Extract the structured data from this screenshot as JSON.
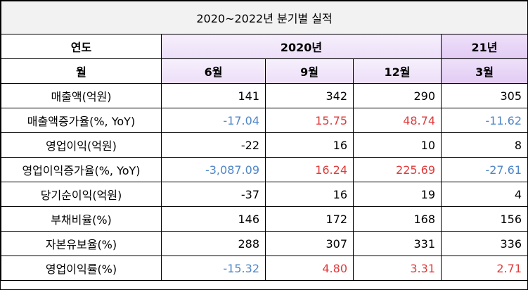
{
  "header": {
    "title": "2020~2022년 분기별 실적"
  },
  "table": {
    "year_row": [
      "연도",
      "2020년",
      "21년"
    ],
    "month_row": [
      "월",
      "6월",
      "9월",
      "12월",
      "3월"
    ],
    "rows": [
      [
        "매출액(억원)",
        "141",
        "342",
        "290",
        "305"
      ],
      [
        "매출액증가율(%, YoY)",
        "-17.04",
        "15.75",
        "48.74",
        "-11.62"
      ],
      [
        "영업이익(억원)",
        "-22",
        "16",
        "10",
        "8"
      ],
      [
        "영업이익증가율(%, YoY)",
        "-3,087.09",
        "16.24",
        "225.69",
        "-27.61"
      ],
      [
        "당기순이익(억원)",
        "-37",
        "16",
        "19",
        "4"
      ],
      [
        "부채비율(%)",
        "146",
        "172",
        "168",
        "156"
      ],
      [
        "자본유보율(%)",
        "288",
        "307",
        "331",
        "336"
      ],
      [
        "영업이익률(%)",
        "-15.32",
        "4.80",
        "3.31",
        "2.71"
      ]
    ]
  }
}
